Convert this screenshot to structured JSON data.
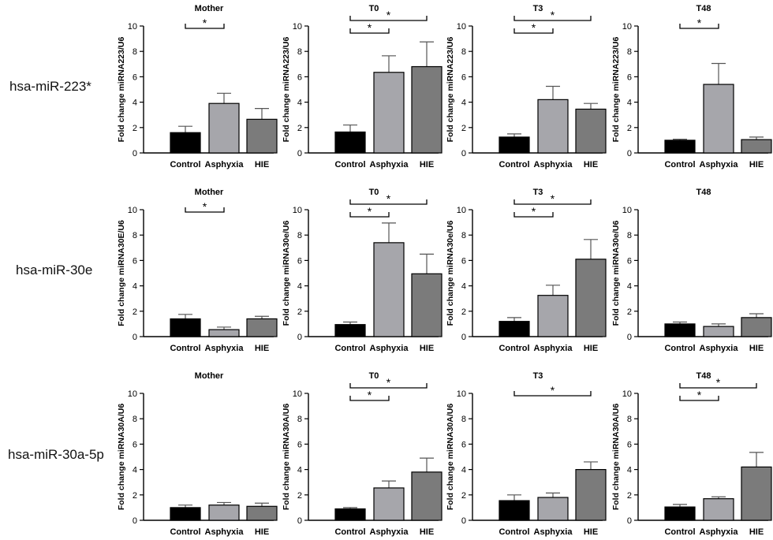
{
  "row_labels": [
    "hsa-miR-223*",
    "hsa-miR-30e",
    "hsa-miR-30a-5p"
  ],
  "colors": {
    "Control": "#000000",
    "Asphyxia": "#a6a6ab",
    "HIE": "#7b7b7b"
  },
  "chart_data": [
    {
      "type": "bar",
      "title": "Mother",
      "ylabel": "Fold change miRNA223/U6",
      "ylim": [
        0,
        10
      ],
      "yticks": [
        0,
        2,
        4,
        6,
        8,
        10
      ],
      "categories": [
        "Control",
        "Asphyxia",
        "HIE"
      ],
      "values": [
        1.6,
        3.9,
        2.65
      ],
      "errors": [
        0.5,
        0.8,
        0.85
      ],
      "significance": [
        {
          "from": "Control",
          "to": "Asphyxia",
          "label": "*"
        }
      ]
    },
    {
      "type": "bar",
      "title": "T0",
      "ylabel": "Fold change miRNA223/U6",
      "ylim": [
        0,
        10
      ],
      "yticks": [
        0,
        2,
        4,
        6,
        8,
        10
      ],
      "categories": [
        "Control",
        "Asphyxia",
        "HIE"
      ],
      "values": [
        1.65,
        6.35,
        6.8
      ],
      "errors": [
        0.55,
        1.3,
        1.95
      ],
      "significance": [
        {
          "from": "Control",
          "to": "Asphyxia",
          "label": "*"
        },
        {
          "from": "Control",
          "to": "HIE",
          "label": "*"
        }
      ]
    },
    {
      "type": "bar",
      "title": "T3",
      "ylabel": "Fold change miRNA223/U6",
      "ylim": [
        0,
        10
      ],
      "yticks": [
        0,
        2,
        4,
        6,
        8,
        10
      ],
      "categories": [
        "Control",
        "Asphyxia",
        "HIE"
      ],
      "values": [
        1.25,
        4.2,
        3.45
      ],
      "errors": [
        0.25,
        1.05,
        0.45
      ],
      "significance": [
        {
          "from": "Control",
          "to": "Asphyxia",
          "label": "*"
        },
        {
          "from": "Control",
          "to": "HIE",
          "label": "*"
        }
      ]
    },
    {
      "type": "bar",
      "title": "T48",
      "ylabel": "Fold change miRNA223/U6",
      "ylim": [
        0,
        10
      ],
      "yticks": [
        0,
        2,
        4,
        6,
        8,
        10
      ],
      "categories": [
        "Control",
        "Asphyxia",
        "HIE"
      ],
      "values": [
        1.0,
        5.4,
        1.05
      ],
      "errors": [
        0.08,
        1.65,
        0.2
      ],
      "significance": [
        {
          "from": "Control",
          "to": "Asphyxia",
          "label": "*"
        }
      ]
    },
    {
      "type": "bar",
      "title": "Mother",
      "ylabel": "Fold change miRNA30E/U6",
      "ylim": [
        0,
        10
      ],
      "yticks": [
        0,
        2,
        4,
        6,
        8,
        10
      ],
      "categories": [
        "Control",
        "Asphyxia",
        "HIE"
      ],
      "values": [
        1.4,
        0.55,
        1.4
      ],
      "errors": [
        0.35,
        0.2,
        0.2
      ],
      "significance": [
        {
          "from": "Control",
          "to": "Asphyxia",
          "label": "*"
        }
      ]
    },
    {
      "type": "bar",
      "title": "T0",
      "ylabel": "Fold change miRNA30e/U6",
      "ylim": [
        0,
        10
      ],
      "yticks": [
        0,
        2,
        4,
        6,
        8,
        10
      ],
      "categories": [
        "Control",
        "Asphyxia",
        "HIE"
      ],
      "values": [
        0.95,
        7.4,
        4.95
      ],
      "errors": [
        0.2,
        1.55,
        1.55
      ],
      "significance": [
        {
          "from": "Control",
          "to": "Asphyxia",
          "label": "*"
        },
        {
          "from": "Control",
          "to": "HIE",
          "label": "*"
        }
      ]
    },
    {
      "type": "bar",
      "title": "T3",
      "ylabel": "Fold change miRNA30e/U6",
      "ylim": [
        0,
        10
      ],
      "yticks": [
        0,
        2,
        4,
        6,
        8,
        10
      ],
      "categories": [
        "Control",
        "Asphyxia",
        "HIE"
      ],
      "values": [
        1.2,
        3.25,
        6.1
      ],
      "errors": [
        0.3,
        0.8,
        1.55
      ],
      "significance": [
        {
          "from": "Control",
          "to": "Asphyxia",
          "label": "*"
        },
        {
          "from": "Control",
          "to": "HIE",
          "label": "*"
        }
      ]
    },
    {
      "type": "bar",
      "title": "T48",
      "ylabel": "Fold change miRNA30e/U6",
      "ylim": [
        0,
        10
      ],
      "yticks": [
        0,
        2,
        4,
        6,
        8,
        10
      ],
      "categories": [
        "Control",
        "Asphyxia",
        "HIE"
      ],
      "values": [
        1.0,
        0.8,
        1.5
      ],
      "errors": [
        0.15,
        0.2,
        0.3
      ],
      "significance": []
    },
    {
      "type": "bar",
      "title": "Mother",
      "ylabel": "Fold change miRNA30A/U6",
      "ylim": [
        0,
        10
      ],
      "yticks": [
        0,
        2,
        4,
        6,
        8,
        10
      ],
      "categories": [
        "Control",
        "Asphyxia",
        "HIE"
      ],
      "values": [
        1.0,
        1.2,
        1.1
      ],
      "errors": [
        0.2,
        0.2,
        0.25
      ],
      "significance": []
    },
    {
      "type": "bar",
      "title": "T0",
      "ylabel": "Fold change miRNA30A/U6",
      "ylim": [
        0,
        10
      ],
      "yticks": [
        0,
        2,
        4,
        6,
        8,
        10
      ],
      "categories": [
        "Control",
        "Asphyxia",
        "HIE"
      ],
      "values": [
        0.9,
        2.55,
        3.8
      ],
      "errors": [
        0.1,
        0.55,
        1.1
      ],
      "significance": [
        {
          "from": "Control",
          "to": "Asphyxia",
          "label": "*"
        },
        {
          "from": "Control",
          "to": "HIE",
          "label": "*"
        }
      ]
    },
    {
      "type": "bar",
      "title": "T3",
      "ylabel": "Fold change miRNA30A/U6",
      "ylim": [
        0,
        10
      ],
      "yticks": [
        0,
        2,
        4,
        6,
        8,
        10
      ],
      "categories": [
        "Control",
        "Asphyxia",
        "HIE"
      ],
      "values": [
        1.55,
        1.8,
        4.0
      ],
      "errors": [
        0.45,
        0.35,
        0.6
      ],
      "significance": [
        {
          "from": "Control",
          "to": "HIE",
          "label": "*"
        }
      ]
    },
    {
      "type": "bar",
      "title": "T48",
      "ylabel": "Fold change miRNA30A/U6",
      "ylim": [
        0,
        10
      ],
      "yticks": [
        0,
        2,
        4,
        6,
        8,
        10
      ],
      "categories": [
        "Control",
        "Asphyxia",
        "HIE"
      ],
      "values": [
        1.05,
        1.7,
        4.2
      ],
      "errors": [
        0.2,
        0.15,
        1.15
      ],
      "significance": [
        {
          "from": "Control",
          "to": "Asphyxia",
          "label": "*"
        },
        {
          "from": "Control",
          "to": "HIE",
          "label": "*"
        }
      ]
    }
  ]
}
